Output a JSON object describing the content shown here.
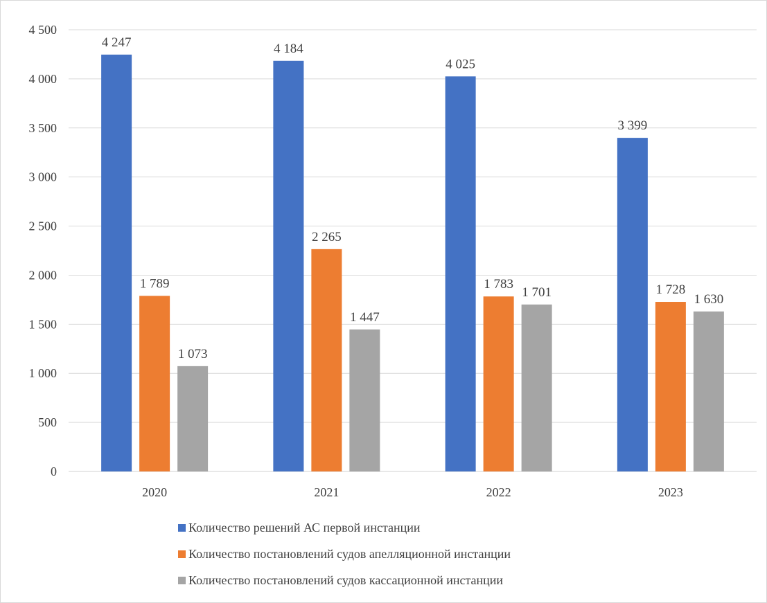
{
  "chart_data": {
    "type": "bar",
    "categories": [
      "2020",
      "2021",
      "2022",
      "2023"
    ],
    "series": [
      {
        "name": "Количество решений АС первой инстанции",
        "color": "#4472c4",
        "values": [
          4247,
          4184,
          4025,
          3399
        ],
        "labels": [
          "4 247",
          "4 184",
          "4 025",
          "3 399"
        ]
      },
      {
        "name": "Количество постановлений судов апелляционной инстанции",
        "color": "#ed7d31",
        "values": [
          1789,
          2265,
          1783,
          1728
        ],
        "labels": [
          "1 789",
          "2 265",
          "1 783",
          "1 728"
        ]
      },
      {
        "name": "Количество постановлений судов кассационной инстанции",
        "color": "#a5a5a5",
        "values": [
          1073,
          1447,
          1701,
          1630
        ],
        "labels": [
          "1 073",
          "1 447",
          "1 701",
          "1 630"
        ]
      }
    ],
    "ylim": [
      0,
      4500
    ],
    "yticks": [
      0,
      500,
      1000,
      1500,
      2000,
      2500,
      3000,
      3500,
      4000,
      4500
    ],
    "ytick_labels": [
      "0",
      "500",
      "1 000",
      "1 500",
      "2 000",
      "2 500",
      "3 000",
      "3 500",
      "4 000",
      "4 500"
    ],
    "grid": true,
    "legend_position": "bottom"
  }
}
